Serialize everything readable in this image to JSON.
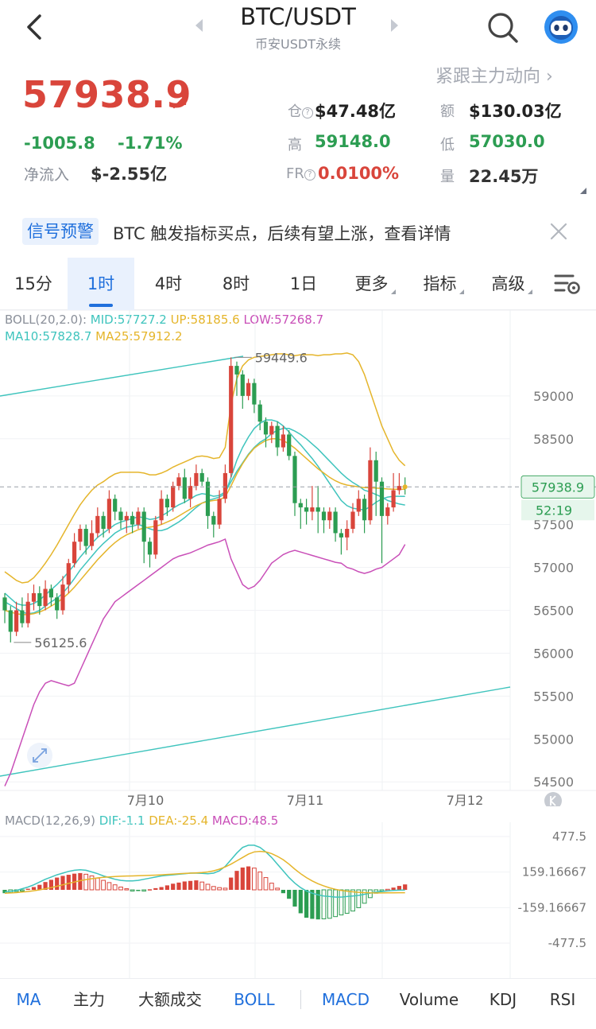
{
  "header": {
    "title": "BTC/USDT",
    "subtitle": "币安USDT永续"
  },
  "price": {
    "last": "57938.9",
    "change_abs": "-1005.8",
    "change_pct": "-1.71%",
    "netflow_label": "净流入",
    "netflow_value": "$-2.55亿",
    "follow_link": "紧跟主力动向 ›"
  },
  "stats": {
    "oi_label": "仓",
    "oi_value": "$47.48亿",
    "amount_label": "额",
    "amount_value": "$130.03亿",
    "high_label": "高",
    "high_value": "59148.0",
    "low_label": "低",
    "low_value": "57030.0",
    "fr_label": "FR",
    "fr_value": "0.0100%",
    "vol_label": "量",
    "vol_value": "22.45万"
  },
  "signal": {
    "badge": "信号预警",
    "text": "BTC 触发指标买点，后续有望上涨，查看详情"
  },
  "tabs": {
    "t15m": "15分",
    "t1h": "1时",
    "t4h": "4时",
    "t8h": "8时",
    "t1d": "1日",
    "more": "更多",
    "indicators": "指标",
    "advanced": "高级"
  },
  "indicators": {
    "boll_name": "BOLL(20,2.0):",
    "boll_mid": "MID:57727.2",
    "boll_up": "UP:58185.6",
    "boll_low": "LOW:57268.7",
    "ma10": "MA10:57828.7",
    "ma25": "MA25:57912.2",
    "macd_name": "MACD(12,26,9)",
    "dif": "DIF:-1.1",
    "dea": "DEA:-25.4",
    "macd": "MACD:48.5"
  },
  "colors": {
    "up": "#d9453b",
    "down": "#2c9d52",
    "accent": "#1f6fdc",
    "boll_mid": "#3fc4bd",
    "boll_up": "#e5b52b",
    "boll_low": "#c94fb8"
  },
  "chart_data": [
    {
      "type": "candlestick",
      "title": "",
      "x_ticks": [
        "7月10",
        "7月11",
        "7月12"
      ],
      "y_ticks": [
        59000,
        58500,
        57500,
        57000,
        56500,
        56000,
        55500,
        55000,
        54500
      ],
      "ylim": [
        54400,
        60000
      ],
      "last_price": 57938.9,
      "last_price_label": "57938.9",
      "countdown": "52:19",
      "max_label": "59449.6",
      "min_label": "56125.6",
      "candles": [
        [
          56650,
          56500,
          56700,
          56350
        ],
        [
          56500,
          56250,
          56550,
          56125.6
        ],
        [
          56250,
          56500,
          56600,
          56200
        ],
        [
          56500,
          56350,
          56650,
          56300
        ],
        [
          56350,
          56600,
          56700,
          56300
        ],
        [
          56600,
          56700,
          56800,
          56500
        ],
        [
          56700,
          56550,
          56780,
          56450
        ],
        [
          56550,
          56750,
          56850,
          56500
        ],
        [
          56750,
          56650,
          56800,
          56550
        ],
        [
          56650,
          56500,
          56700,
          56400
        ],
        [
          56500,
          56800,
          56900,
          56450
        ],
        [
          56800,
          57050,
          57100,
          56700
        ],
        [
          57050,
          57300,
          57400,
          57000
        ],
        [
          57300,
          57450,
          57500,
          57200
        ],
        [
          57450,
          57250,
          57500,
          57150
        ],
        [
          57250,
          57400,
          57550,
          57200
        ],
        [
          57400,
          57600,
          57700,
          57350
        ],
        [
          57600,
          57450,
          57650,
          57350
        ],
        [
          57450,
          57800,
          57900,
          57400
        ],
        [
          57800,
          57650,
          57850,
          57550
        ],
        [
          57650,
          57550,
          57700,
          57450
        ],
        [
          57550,
          57600,
          57650,
          57400
        ],
        [
          57600,
          57500,
          57650,
          57400
        ],
        [
          57500,
          57650,
          57700,
          57450
        ],
        [
          57650,
          57300,
          57700,
          57050
        ],
        [
          57300,
          57150,
          57350,
          57000
        ],
        [
          57150,
          57550,
          57600,
          57100
        ],
        [
          57550,
          57800,
          57900,
          57500
        ],
        [
          57800,
          57700,
          57850,
          57600
        ],
        [
          57700,
          57950,
          58000,
          57650
        ],
        [
          57950,
          58050,
          58100,
          57900
        ],
        [
          58050,
          57800,
          58150,
          57750
        ],
        [
          57800,
          57950,
          58050,
          57700
        ],
        [
          57950,
          58100,
          58200,
          57900
        ],
        [
          58100,
          58000,
          58150,
          57950
        ],
        [
          58000,
          57600,
          58050,
          57450
        ],
        [
          57600,
          57500,
          57650,
          57350
        ],
        [
          57500,
          57800,
          57900,
          57450
        ],
        [
          57800,
          58100,
          58200,
          57750
        ],
        [
          58100,
          59350,
          59449.6,
          58050
        ],
        [
          59350,
          59250,
          59400,
          59000
        ],
        [
          59250,
          59000,
          59300,
          58850
        ],
        [
          59000,
          59150,
          59200,
          58950
        ],
        [
          59150,
          58900,
          59200,
          58800
        ],
        [
          58900,
          58700,
          58950,
          58600
        ],
        [
          58700,
          58550,
          58750,
          58400
        ],
        [
          58550,
          58650,
          58700,
          58450
        ],
        [
          58650,
          58400,
          58700,
          58300
        ],
        [
          58400,
          58550,
          58650,
          58350
        ],
        [
          58550,
          58300,
          58600,
          58250
        ],
        [
          58300,
          57750,
          58350,
          57600
        ],
        [
          57750,
          57700,
          57800,
          57450
        ],
        [
          57700,
          57650,
          57800,
          57500
        ],
        [
          57650,
          57700,
          57950,
          57550
        ],
        [
          57700,
          57650,
          57950,
          57400
        ],
        [
          57650,
          57550,
          57700,
          57400
        ],
        [
          57550,
          57650,
          57700,
          57450
        ],
        [
          57650,
          57400,
          57700,
          57300
        ],
        [
          57400,
          57350,
          57450,
          57150
        ],
        [
          57350,
          57450,
          57550,
          57200
        ],
        [
          57450,
          57650,
          57750,
          57400
        ],
        [
          57650,
          57800,
          57900,
          57600
        ],
        [
          57800,
          57550,
          57850,
          57400
        ],
        [
          57550,
          58250,
          58400,
          57500
        ],
        [
          58250,
          58000,
          58350,
          57600
        ],
        [
          58000,
          57600,
          58050,
          57050
        ],
        [
          57600,
          57700,
          57750,
          57500
        ],
        [
          57700,
          57900,
          58100,
          57650
        ],
        [
          57900,
          57950,
          58100,
          57850
        ],
        [
          57950,
          57938.9,
          58050,
          57850
        ]
      ],
      "series": [
        {
          "name": "MID",
          "values": [
            56700,
            56640,
            56580,
            56560,
            56560,
            56580,
            56620,
            56680,
            56740,
            56800,
            56870,
            56950,
            57030,
            57120,
            57200,
            57280,
            57350,
            57400,
            57450,
            57500,
            57530,
            57550,
            57570,
            57590,
            57580,
            57560,
            57570,
            57600,
            57640,
            57690,
            57730,
            57760,
            57800,
            57840,
            57860,
            57850,
            57830,
            57840,
            57880,
            58000,
            58120,
            58220,
            58320,
            58400,
            58460,
            58500,
            58560,
            58600,
            58620,
            58620,
            58590,
            58550,
            58500,
            58440,
            58380,
            58310,
            58240,
            58170,
            58100,
            58040,
            57990,
            57950,
            57900,
            57880,
            57850,
            57820,
            57780,
            57760,
            57740,
            57727.2
          ]
        },
        {
          "name": "UP",
          "values": [
            56950,
            56900,
            56850,
            56820,
            56830,
            56880,
            56960,
            57050,
            57150,
            57260,
            57380,
            57500,
            57620,
            57730,
            57820,
            57900,
            57960,
            58000,
            58050,
            58090,
            58110,
            58110,
            58110,
            58110,
            58100,
            58080,
            58080,
            58100,
            58130,
            58170,
            58200,
            58230,
            58260,
            58290,
            58300,
            58290,
            58270,
            58280,
            58400,
            58900,
            59200,
            59350,
            59420,
            59450,
            59460,
            59470,
            59480,
            59490,
            59490,
            59480,
            59470,
            59480,
            59480,
            59480,
            59470,
            59480,
            59480,
            59490,
            59490,
            59500,
            59480,
            59400,
            59250,
            59050,
            58850,
            58650,
            58500,
            58350,
            58250,
            58185.6
          ]
        },
        {
          "name": "LOW",
          "values": [
            54450,
            54600,
            54800,
            55000,
            55200,
            55400,
            55550,
            55650,
            55680,
            55660,
            55640,
            55620,
            55650,
            55800,
            55950,
            56100,
            56250,
            56400,
            56500,
            56600,
            56650,
            56700,
            56750,
            56800,
            56850,
            56900,
            56950,
            57000,
            57050,
            57100,
            57130,
            57150,
            57170,
            57200,
            57230,
            57260,
            57280,
            57300,
            57330,
            57100,
            56950,
            56800,
            56750,
            56780,
            56850,
            56950,
            57050,
            57100,
            57150,
            57180,
            57200,
            57180,
            57160,
            57140,
            57120,
            57100,
            57080,
            57060,
            57050,
            57000,
            56980,
            56950,
            56930,
            56950,
            56980,
            57000,
            57050,
            57100,
            57150,
            57268.7
          ]
        },
        {
          "name": "MA10",
          "values": [
            56600,
            56560,
            56520,
            56480,
            56460,
            56470,
            56500,
            56550,
            56600,
            56640,
            56700,
            56780,
            56870,
            56970,
            57050,
            57130,
            57210,
            57280,
            57340,
            57400,
            57440,
            57470,
            57480,
            57500,
            57480,
            57450,
            57430,
            57430,
            57450,
            57490,
            57530,
            57580,
            57640,
            57700,
            57750,
            57780,
            57800,
            57820,
            57860,
            58050,
            58250,
            58400,
            58520,
            58620,
            58680,
            58720,
            58720,
            58700,
            58650,
            58580,
            58500,
            58430,
            58350,
            58270,
            58180,
            58080,
            57980,
            57880,
            57780,
            57720,
            57690,
            57680,
            57670,
            57710,
            57760,
            57800,
            57820,
            57830,
            57830,
            57828.7
          ]
        },
        {
          "name": "MA25",
          "values": [
            56500,
            56480,
            56460,
            56450,
            56450,
            56460,
            56480,
            56510,
            56550,
            56590,
            56640,
            56700,
            56770,
            56850,
            56930,
            57010,
            57090,
            57160,
            57230,
            57290,
            57340,
            57380,
            57410,
            57440,
            57460,
            57470,
            57480,
            57500,
            57530,
            57560,
            57600,
            57640,
            57680,
            57720,
            57750,
            57770,
            57780,
            57790,
            57820,
            57950,
            58090,
            58210,
            58310,
            58390,
            58440,
            58480,
            58500,
            58500,
            58480,
            58440,
            58390,
            58330,
            58270,
            58210,
            58150,
            58100,
            58050,
            58010,
            57980,
            57960,
            57950,
            57940,
            57930,
            57930,
            57925,
            57920,
            57915,
            57912,
            57912,
            57912.2
          ]
        }
      ]
    },
    {
      "type": "bar",
      "title": "",
      "y_ticks": [
        "477.5",
        "159.16667",
        "-159.16667",
        "-477.5"
      ],
      "ylim": [
        -477.5,
        477.5
      ],
      "series": [
        {
          "name": "MACD",
          "values": [
            -30,
            -25,
            -15,
            -5,
            10,
            25,
            45,
            70,
            90,
            110,
            125,
            135,
            145,
            150,
            140,
            125,
            105,
            85,
            65,
            45,
            25,
            10,
            -5,
            -10,
            -5,
            5,
            15,
            25,
            40,
            55,
            65,
            75,
            80,
            85,
            70,
            50,
            30,
            20,
            15,
            110,
            170,
            200,
            210,
            195,
            160,
            110,
            60,
            15,
            -30,
            -80,
            -150,
            -210,
            -250,
            -260,
            -265,
            -260,
            -255,
            -240,
            -225,
            -210,
            -190,
            -160,
            -120,
            -70,
            -30,
            -10,
            5,
            20,
            35,
            48.5
          ]
        },
        {
          "name": "DIF",
          "values": [
            -20,
            -15,
            -5,
            10,
            25,
            45,
            70,
            95,
            115,
            135,
            150,
            165,
            175,
            180,
            175,
            160,
            145,
            125,
            110,
            95,
            85,
            80,
            80,
            85,
            95,
            105,
            115,
            125,
            130,
            135,
            140,
            145,
            150,
            150,
            148,
            145,
            150,
            170,
            210,
            270,
            330,
            380,
            400,
            400,
            380,
            340,
            290,
            230,
            170,
            110,
            60,
            20,
            -10,
            -30,
            -45,
            -55,
            -60,
            -65,
            -65,
            -60,
            -55,
            -50,
            -40,
            -30,
            -20,
            -15,
            -10,
            -5,
            -3,
            -1.1
          ]
        },
        {
          "name": "DEA",
          "values": [
            -30,
            -28,
            -25,
            -20,
            -15,
            -8,
            0,
            10,
            20,
            32,
            45,
            58,
            70,
            82,
            92,
            100,
            107,
            112,
            116,
            120,
            122,
            124,
            125,
            126,
            128,
            130,
            132,
            135,
            138,
            141,
            144,
            147,
            150,
            152,
            155,
            160,
            170,
            185,
            205,
            230,
            260,
            290,
            320,
            340,
            345,
            340,
            325,
            300,
            270,
            230,
            185,
            145,
            110,
            80,
            55,
            35,
            18,
            5,
            -5,
            -12,
            -18,
            -22,
            -25,
            -27,
            -28,
            -28,
            -27,
            -27,
            -26,
            -25.4
          ]
        }
      ]
    }
  ],
  "bottom_tabs": {
    "ma": "MA",
    "zhuli": "主力",
    "big": "大额成交",
    "boll": "BOLL",
    "macd": "MACD",
    "volume": "Volume",
    "kdj": "KDJ",
    "rsi": "RSI"
  }
}
